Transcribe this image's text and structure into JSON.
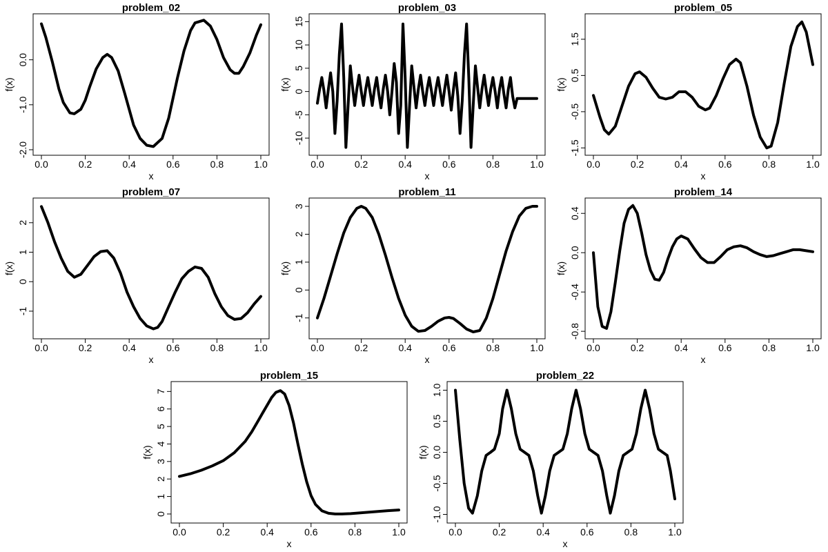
{
  "chart_data": [
    {
      "type": "line",
      "title": "problem_02",
      "xlabel": "x",
      "ylabel": "f(x)",
      "xlim": [
        0,
        1
      ],
      "ylim": [
        -2.0,
        0.9
      ],
      "xticks": [
        "0.0",
        "0.2",
        "0.4",
        "0.6",
        "0.8",
        "1.0"
      ],
      "yticks": [
        "-2.0",
        "-1.0",
        "0.0"
      ],
      "x": [
        0.0,
        0.02,
        0.05,
        0.08,
        0.1,
        0.13,
        0.15,
        0.18,
        0.2,
        0.22,
        0.25,
        0.28,
        0.3,
        0.32,
        0.35,
        0.38,
        0.4,
        0.42,
        0.45,
        0.48,
        0.51,
        0.55,
        0.58,
        0.6,
        0.62,
        0.65,
        0.68,
        0.7,
        0.74,
        0.77,
        0.8,
        0.83,
        0.86,
        0.88,
        0.9,
        0.92,
        0.95,
        0.98,
        1.0
      ],
      "y": [
        0.8,
        0.5,
        -0.05,
        -0.65,
        -0.95,
        -1.18,
        -1.2,
        -1.1,
        -0.9,
        -0.6,
        -0.2,
        0.05,
        0.12,
        0.05,
        -0.25,
        -0.75,
        -1.1,
        -1.45,
        -1.75,
        -1.9,
        -1.93,
        -1.75,
        -1.3,
        -0.85,
        -0.4,
        0.2,
        0.65,
        0.82,
        0.88,
        0.75,
        0.45,
        0.05,
        -0.22,
        -0.3,
        -0.3,
        -0.15,
        0.15,
        0.55,
        0.78
      ]
    },
    {
      "type": "line",
      "title": "problem_03",
      "xlabel": "x",
      "ylabel": "f(x)",
      "xlim": [
        0,
        1
      ],
      "ylim": [
        -12.5,
        15.5
      ],
      "xticks": [
        "0.0",
        "0.2",
        "0.4",
        "0.6",
        "0.8",
        "1.0"
      ],
      "yticks": [
        "-10",
        "-5",
        "0",
        "5",
        "10",
        "15"
      ],
      "x": [
        0.0,
        0.01,
        0.02,
        0.03,
        0.04,
        0.05,
        0.06,
        0.07,
        0.08,
        0.09,
        0.1,
        0.11,
        0.12,
        0.13,
        0.14,
        0.15,
        0.16,
        0.17,
        0.18,
        0.19,
        0.2,
        0.21,
        0.22,
        0.23,
        0.24,
        0.25,
        0.26,
        0.27,
        0.28,
        0.29,
        0.3,
        0.31,
        0.32,
        0.33,
        0.34,
        0.35,
        0.36,
        0.37,
        0.38,
        0.39,
        0.4,
        0.41,
        0.42,
        0.43,
        0.44,
        0.45,
        0.46,
        0.47,
        0.48,
        0.49,
        0.5,
        0.51,
        0.52,
        0.53,
        0.54,
        0.55,
        0.56,
        0.57,
        0.58,
        0.59,
        0.6,
        0.61,
        0.62,
        0.63,
        0.64,
        0.65,
        0.66,
        0.67,
        0.68,
        0.69,
        0.7,
        0.71,
        0.72,
        0.73,
        0.74,
        0.75,
        0.76,
        0.77,
        0.78,
        0.79,
        0.8,
        0.81,
        0.82,
        0.83,
        0.84,
        0.85,
        0.86,
        0.87,
        0.88,
        0.89,
        0.9,
        0.91,
        0.92,
        0.93,
        0.94,
        0.95,
        0.96,
        0.97,
        0.98,
        0.99,
        1.0
      ],
      "y": [
        -2.5,
        0.5,
        3.0,
        0.2,
        -3.5,
        0.5,
        4.0,
        0.0,
        -9.0,
        -2.0,
        8.0,
        14.5,
        3.0,
        -12.0,
        -3.0,
        5.5,
        1.0,
        -3.0,
        0.5,
        3.5,
        0.0,
        -3.0,
        0.5,
        3.0,
        0.0,
        -3.0,
        0.5,
        3.0,
        -0.5,
        -3.5,
        0.5,
        3.5,
        0.0,
        -5.0,
        0.0,
        6.0,
        2.0,
        -9.0,
        -3.0,
        14.5,
        3.0,
        -12.0,
        -3.0,
        5.5,
        1.0,
        -3.5,
        0.5,
        3.5,
        0.0,
        -3.0,
        0.5,
        3.0,
        0.0,
        -3.0,
        0.5,
        3.0,
        0.0,
        -3.0,
        0.5,
        3.5,
        0.0,
        -4.0,
        0.5,
        4.0,
        -1.0,
        -9.0,
        -2.0,
        8.0,
        14.5,
        3.0,
        -12.0,
        -3.0,
        5.5,
        1.0,
        -3.5,
        0.5,
        3.5,
        0.0,
        -3.0,
        0.5,
        3.0,
        0.0,
        -3.5,
        0.5,
        3.0,
        -0.5,
        -3.5,
        0.5,
        3.0,
        -1.0,
        -3.5,
        -1.5,
        -1.5,
        -1.5,
        -1.5,
        -1.5,
        -1.5,
        -1.5,
        -1.5,
        -1.5,
        -1.5
      ]
    },
    {
      "type": "line",
      "title": "problem_05",
      "xlabel": "x",
      "ylabel": "f(x)",
      "xlim": [
        0,
        1
      ],
      "ylim": [
        -1.55,
        2.05
      ],
      "xticks": [
        "0.0",
        "0.2",
        "0.4",
        "0.6",
        "0.8",
        "1.0"
      ],
      "yticks": [
        "-1.5",
        "-0.5",
        "0.5",
        "1.5"
      ],
      "x": [
        0.0,
        0.03,
        0.05,
        0.07,
        0.1,
        0.13,
        0.16,
        0.19,
        0.21,
        0.24,
        0.27,
        0.3,
        0.33,
        0.36,
        0.39,
        0.42,
        0.45,
        0.48,
        0.51,
        0.53,
        0.56,
        0.59,
        0.62,
        0.65,
        0.67,
        0.7,
        0.73,
        0.76,
        0.79,
        0.81,
        0.84,
        0.87,
        0.9,
        0.93,
        0.95,
        0.97,
        1.0
      ],
      "y": [
        -0.05,
        -0.65,
        -1.0,
        -1.12,
        -0.9,
        -0.35,
        0.2,
        0.55,
        0.6,
        0.45,
        0.15,
        -0.1,
        -0.15,
        -0.1,
        0.05,
        0.05,
        -0.1,
        -0.35,
        -0.45,
        -0.4,
        -0.05,
        0.4,
        0.8,
        0.95,
        0.85,
        0.2,
        -0.6,
        -1.2,
        -1.5,
        -1.45,
        -0.8,
        0.3,
        1.3,
        1.85,
        1.98,
        1.7,
        0.8
      ]
    },
    {
      "type": "line",
      "title": "problem_07",
      "xlabel": "x",
      "ylabel": "f(x)",
      "xlim": [
        0,
        1
      ],
      "ylim": [
        -1.75,
        2.65
      ],
      "xticks": [
        "0.0",
        "0.2",
        "0.4",
        "0.6",
        "0.8",
        "1.0"
      ],
      "yticks": [
        "-1",
        "0",
        "1",
        "2"
      ],
      "x": [
        0.0,
        0.03,
        0.06,
        0.09,
        0.12,
        0.15,
        0.18,
        0.21,
        0.24,
        0.27,
        0.3,
        0.33,
        0.36,
        0.39,
        0.42,
        0.45,
        0.48,
        0.51,
        0.53,
        0.55,
        0.58,
        0.61,
        0.64,
        0.67,
        0.7,
        0.73,
        0.76,
        0.79,
        0.82,
        0.85,
        0.88,
        0.91,
        0.94,
        0.97,
        1.0
      ],
      "y": [
        2.55,
        2.0,
        1.35,
        0.8,
        0.35,
        0.15,
        0.25,
        0.55,
        0.85,
        1.02,
        1.05,
        0.8,
        0.3,
        -0.35,
        -0.85,
        -1.25,
        -1.5,
        -1.6,
        -1.55,
        -1.35,
        -0.85,
        -0.35,
        0.1,
        0.35,
        0.5,
        0.45,
        0.15,
        -0.4,
        -0.85,
        -1.15,
        -1.28,
        -1.25,
        -1.05,
        -0.75,
        -0.5
      ]
    },
    {
      "type": "line",
      "title": "problem_11",
      "xlabel": "x",
      "ylabel": "f(x)",
      "xlim": [
        0,
        1
      ],
      "ylim": [
        -1.55,
        3.1
      ],
      "xticks": [
        "0.0",
        "0.2",
        "0.4",
        "0.6",
        "0.8",
        "1.0"
      ],
      "yticks": [
        "-1",
        "0",
        "1",
        "2",
        "3"
      ],
      "x": [
        0.0,
        0.03,
        0.06,
        0.09,
        0.12,
        0.15,
        0.18,
        0.2,
        0.22,
        0.25,
        0.28,
        0.31,
        0.34,
        0.37,
        0.4,
        0.43,
        0.46,
        0.49,
        0.52,
        0.55,
        0.58,
        0.6,
        0.62,
        0.65,
        0.68,
        0.71,
        0.74,
        0.77,
        0.8,
        0.83,
        0.86,
        0.89,
        0.92,
        0.95,
        0.98,
        1.0
      ],
      "y": [
        -1.0,
        -0.3,
        0.5,
        1.3,
        2.05,
        2.6,
        2.93,
        3.0,
        2.93,
        2.6,
        2.0,
        1.25,
        0.45,
        -0.3,
        -0.9,
        -1.3,
        -1.48,
        -1.45,
        -1.3,
        -1.12,
        -1.0,
        -0.98,
        -1.02,
        -1.2,
        -1.4,
        -1.5,
        -1.45,
        -1.0,
        -0.3,
        0.55,
        1.4,
        2.1,
        2.65,
        2.93,
        3.0,
        3.0
      ]
    },
    {
      "type": "line",
      "title": "problem_14",
      "xlabel": "x",
      "ylabel": "f(x)",
      "xlim": [
        0,
        1
      ],
      "ylim": [
        -0.82,
        0.5
      ],
      "xticks": [
        "0.0",
        "0.2",
        "0.4",
        "0.6",
        "0.8",
        "1.0"
      ],
      "yticks": [
        "-0.8",
        "-0.4",
        "0.0",
        "0.4"
      ],
      "x": [
        0.0,
        0.02,
        0.04,
        0.06,
        0.08,
        0.1,
        0.12,
        0.14,
        0.16,
        0.18,
        0.2,
        0.22,
        0.24,
        0.26,
        0.28,
        0.3,
        0.32,
        0.34,
        0.36,
        0.38,
        0.4,
        0.43,
        0.46,
        0.49,
        0.52,
        0.55,
        0.58,
        0.61,
        0.64,
        0.67,
        0.7,
        0.73,
        0.76,
        0.79,
        0.82,
        0.85,
        0.88,
        0.91,
        0.94,
        0.97,
        1.0
      ],
      "y": [
        0.0,
        -0.55,
        -0.75,
        -0.77,
        -0.6,
        -0.3,
        0.02,
        0.3,
        0.44,
        0.48,
        0.4,
        0.2,
        -0.02,
        -0.18,
        -0.27,
        -0.28,
        -0.2,
        -0.06,
        0.06,
        0.14,
        0.17,
        0.14,
        0.04,
        -0.05,
        -0.1,
        -0.1,
        -0.04,
        0.03,
        0.06,
        0.07,
        0.05,
        0.01,
        -0.02,
        -0.04,
        -0.03,
        -0.01,
        0.01,
        0.03,
        0.03,
        0.02,
        0.01
      ]
    },
    {
      "type": "line",
      "title": "problem_15",
      "xlabel": "x",
      "ylabel": "f(x)",
      "xlim": [
        0,
        1
      ],
      "ylim": [
        -0.2,
        7.25
      ],
      "xticks": [
        "0.0",
        "0.2",
        "0.4",
        "0.6",
        "0.8",
        "1.0"
      ],
      "yticks": [
        "0",
        "1",
        "2",
        "3",
        "4",
        "5",
        "6",
        "7"
      ],
      "x": [
        0.0,
        0.05,
        0.1,
        0.15,
        0.2,
        0.25,
        0.3,
        0.33,
        0.36,
        0.39,
        0.42,
        0.44,
        0.46,
        0.48,
        0.5,
        0.52,
        0.54,
        0.56,
        0.58,
        0.6,
        0.62,
        0.65,
        0.68,
        0.71,
        0.74,
        0.78,
        0.82,
        0.86,
        0.9,
        0.95,
        1.0
      ],
      "y": [
        2.15,
        2.3,
        2.5,
        2.75,
        3.05,
        3.5,
        4.15,
        4.7,
        5.35,
        6.0,
        6.65,
        6.95,
        7.05,
        6.85,
        6.2,
        5.2,
        4.0,
        2.85,
        1.85,
        1.05,
        0.55,
        0.18,
        0.04,
        0.0,
        0.0,
        0.02,
        0.06,
        0.1,
        0.14,
        0.19,
        0.23
      ]
    },
    {
      "type": "line",
      "title": "problem_22",
      "xlabel": "x",
      "ylabel": "f(x)",
      "xlim": [
        0,
        1
      ],
      "ylim": [
        -1.05,
        1.05
      ],
      "xticks": [
        "0.0",
        "0.2",
        "0.4",
        "0.6",
        "0.8",
        "1.0"
      ],
      "yticks": [
        "-1.0",
        "-0.5",
        "0.0",
        "0.5",
        "1.0"
      ],
      "x": [
        0.0,
        0.02,
        0.04,
        0.06,
        0.078,
        0.1,
        0.12,
        0.14,
        0.16,
        0.178,
        0.2,
        0.215,
        0.235,
        0.255,
        0.275,
        0.295,
        0.315,
        0.335,
        0.355,
        0.375,
        0.392,
        0.41,
        0.43,
        0.45,
        0.47,
        0.49,
        0.51,
        0.53,
        0.55,
        0.57,
        0.59,
        0.61,
        0.63,
        0.65,
        0.67,
        0.69,
        0.706,
        0.725,
        0.745,
        0.765,
        0.785,
        0.805,
        0.825,
        0.845,
        0.865,
        0.885,
        0.905,
        0.925,
        0.945,
        0.965,
        0.98,
        1.0
      ],
      "y": [
        1.0,
        0.2,
        -0.5,
        -0.9,
        -0.98,
        -0.7,
        -0.3,
        -0.05,
        0.0,
        0.05,
        0.3,
        0.7,
        1.0,
        0.7,
        0.3,
        0.05,
        0.0,
        -0.05,
        -0.3,
        -0.7,
        -0.98,
        -0.7,
        -0.3,
        -0.05,
        0.0,
        0.05,
        0.3,
        0.7,
        1.0,
        0.7,
        0.3,
        0.05,
        0.0,
        -0.05,
        -0.3,
        -0.7,
        -0.98,
        -0.7,
        -0.3,
        -0.05,
        0.0,
        0.05,
        0.3,
        0.7,
        1.0,
        0.7,
        0.3,
        0.05,
        0.0,
        -0.05,
        -0.3,
        -0.75
      ]
    }
  ]
}
